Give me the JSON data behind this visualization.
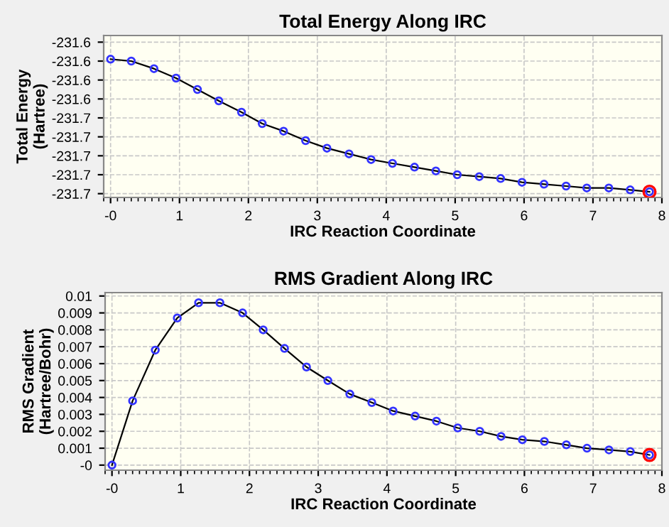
{
  "chart_data": [
    {
      "type": "line",
      "title": "Total Energy Along IRC",
      "xlabel": "IRC Reaction Coordinate",
      "ylabel": "Total Energy\n(Hartree)",
      "x": [
        0,
        0.3,
        0.63,
        0.95,
        1.26,
        1.57,
        1.9,
        2.2,
        2.51,
        2.83,
        3.14,
        3.46,
        3.78,
        4.09,
        4.41,
        4.72,
        5.03,
        5.35,
        5.66,
        5.97,
        6.29,
        6.61,
        6.91,
        7.23,
        7.54,
        7.82
      ],
      "series": [
        {
          "color": "#3333ff",
          "marker": "circle",
          "line_style": "solid",
          "values": [
            -231.619,
            -231.62,
            -231.624,
            -231.629,
            -231.635,
            -231.641,
            -231.647,
            -231.653,
            -231.657,
            -231.662,
            -231.666,
            -231.669,
            -231.672,
            -231.674,
            -231.676,
            -231.678,
            -231.68,
            -231.681,
            -231.682,
            -231.684,
            -231.685,
            -231.686,
            -231.687,
            -231.687,
            -231.688,
            -231.689
          ]
        },
        {
          "type": "scatter",
          "color": "#ff0000",
          "marker": "circle",
          "x": [
            7.82
          ],
          "values": [
            -231.689
          ]
        }
      ],
      "xlim": [
        -0.1,
        8
      ],
      "xticks": [
        {
          "value": 0,
          "label": "-0"
        },
        1,
        2,
        3,
        4,
        5,
        6,
        7,
        8
      ],
      "ylim": [
        -231.692,
        -231.6065
      ],
      "yticks": [
        {
          "value": -231.61,
          "label": "-231.6"
        },
        {
          "value": -231.62,
          "label": "-231.6"
        },
        {
          "value": -231.63,
          "label": "-231.6"
        },
        {
          "value": -231.64,
          "label": "-231.6"
        },
        {
          "value": -231.65,
          "label": "-231.7"
        },
        {
          "value": -231.66,
          "label": "-231.7"
        },
        {
          "value": -231.67,
          "label": "-231.7"
        },
        {
          "value": -231.68,
          "label": "-231.7"
        },
        {
          "value": -231.69,
          "label": "-231.7"
        }
      ],
      "grid": true,
      "legend": false
    },
    {
      "type": "line",
      "title": "RMS Gradient Along IRC",
      "xlabel": "IRC Reaction Coordinate",
      "ylabel": "RMS Gradient\n(Hartree/Bohr)",
      "x": [
        0,
        0.3,
        0.63,
        0.95,
        1.26,
        1.57,
        1.9,
        2.2,
        2.51,
        2.83,
        3.14,
        3.46,
        3.78,
        4.09,
        4.41,
        4.72,
        5.03,
        5.35,
        5.66,
        5.97,
        6.29,
        6.61,
        6.91,
        7.23,
        7.54,
        7.82
      ],
      "series": [
        {
          "color": "#3333ff",
          "marker": "circle",
          "line_style": "solid",
          "values": [
            0,
            0.0038,
            0.0068,
            0.0087,
            0.0096,
            0.0096,
            0.009,
            0.008,
            0.0069,
            0.0058,
            0.005,
            0.0042,
            0.0037,
            0.0032,
            0.0029,
            0.0026,
            0.0022,
            0.002,
            0.0017,
            0.0015,
            0.0014,
            0.0012,
            0.001,
            0.0009,
            0.0008,
            0.0006
          ]
        },
        {
          "type": "scatter",
          "color": "#ff0000",
          "marker": "circle",
          "x": [
            7.82
          ],
          "values": [
            0.0006
          ]
        }
      ],
      "xlim": [
        -0.1,
        8
      ],
      "xticks": [
        {
          "value": 0,
          "label": "-0"
        },
        1,
        2,
        3,
        4,
        5,
        6,
        7,
        8
      ],
      "ylim": [
        -0.0003,
        0.0102
      ],
      "yticks": [
        {
          "value": 0,
          "label": "-0"
        },
        0.001,
        0.002,
        0.003,
        0.004,
        0.005,
        0.006,
        0.007,
        0.008,
        0.009,
        0.01
      ],
      "grid": true,
      "legend": false
    }
  ]
}
